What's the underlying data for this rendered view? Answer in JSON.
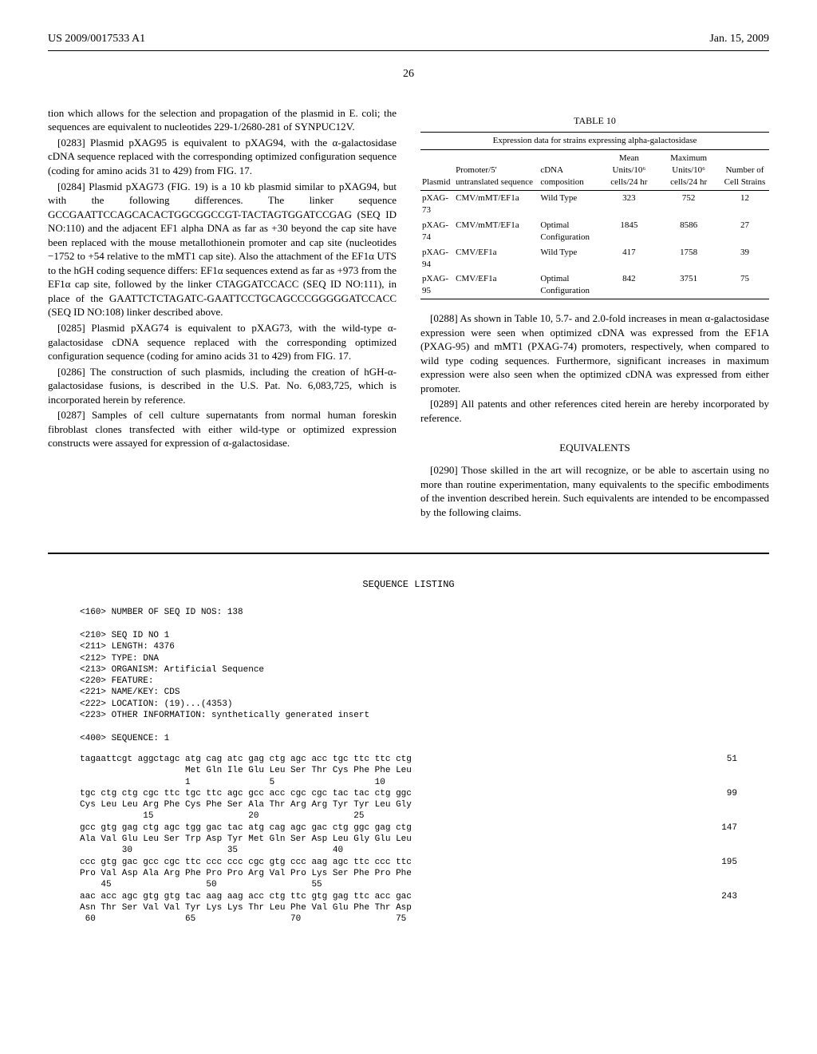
{
  "header": {
    "left": "US 2009/0017533 A1",
    "right": "Jan. 15, 2009"
  },
  "page_number": "26",
  "left_column": {
    "p282_cont": "tion which allows for the selection and propagation of the plasmid in E. coli; the sequences are equivalent to nucleotides 229-1/2680-281 of SYNPUC12V.",
    "p283": "[0283]   Plasmid pXAG95 is equivalent to pXAG94, with the α-galactosidase cDNA sequence replaced with the corresponding optimized configuration sequence (coding for amino acids 31 to 429) from FIG. 17.",
    "p284": "[0284]   Plasmid pXAG73 (FIG. 19) is a 10 kb plasmid similar to pXAG94, but with the following differences. The linker sequence GCCGAATTCCAGCACACTGGCGGCCGT-TACTAGTGGATCCGAG (SEQ ID NO:110) and the adjacent EF1 alpha DNA as far as +30 beyond the cap site have been replaced with the mouse metallothionein promoter and cap site (nucleotides −1752 to +54 relative to the mMT1 cap site). Also the attachment of the EF1α UTS to the hGH coding sequence differs: EF1α sequences extend as far as +973 from the EF1α cap site, followed by the linker CTAGGATCCACC (SEQ ID NO:111), in place of the GAATTCTCTAGATC-GAATTCCTGCAGCCCGGGGGATCCACC (SEQ ID NO:108) linker described above.",
    "p285": "[0285]   Plasmid pXAG74 is equivalent to pXAG73, with the wild-type α-galactosidase cDNA sequence replaced with the corresponding optimized configuration sequence (coding for amino acids 31 to 429) from FIG. 17.",
    "p286": "[0286]   The construction of such plasmids, including the creation of hGH-α-galactosidase fusions, is described in the U.S. Pat. No. 6,083,725, which is incorporated herein by reference.",
    "p287": "[0287]   Samples of cell culture supernatants from normal human foreskin fibroblast clones transfected with either wild-type or optimized expression constructs were assayed for expression of α-galactosidase."
  },
  "table10": {
    "title": "TABLE 10",
    "caption": "Expression data for strains expressing alpha-galactosidase",
    "headers": {
      "c1": "Plasmid",
      "c2": "Promoter/5' untranslated sequence",
      "c3": "cDNA composition",
      "c4": "Mean Units/10⁶ cells/24 hr",
      "c5": "Maximum Units/10⁶ cells/24 hr",
      "c6": "Number of Cell Strains"
    },
    "rows": [
      {
        "plasmid": "pXAG-73",
        "promoter": "CMV/mMT/EF1a",
        "cdna": "Wild Type",
        "mean": "323",
        "max": "752",
        "strains": "12"
      },
      {
        "plasmid": "pXAG-74",
        "promoter": "CMV/mMT/EF1a",
        "cdna": "Optimal Configuration",
        "mean": "1845",
        "max": "8586",
        "strains": "27"
      },
      {
        "plasmid": "pXAG-94",
        "promoter": "CMV/EF1a",
        "cdna": "Wild Type",
        "mean": "417",
        "max": "1758",
        "strains": "39"
      },
      {
        "plasmid": "pXAG-95",
        "promoter": "CMV/EF1a",
        "cdna": "Optimal Configuration",
        "mean": "842",
        "max": "3751",
        "strains": "75"
      }
    ]
  },
  "right_column": {
    "p288": "[0288]   As shown in Table 10, 5.7- and 2.0-fold increases in mean α-galactosidase expression were seen when optimized cDNA was expressed from the EF1A (PXAG-95) and mMT1 (PXAG-74) promoters, respectively, when compared to wild type coding sequences. Furthermore, significant increases in maximum expression were also seen when the optimized cDNA was expressed from either promoter.",
    "p289": "[0289]   All patents and other references cited herein are hereby incorporated by reference.",
    "equivalents_title": "EQUIVALENTS",
    "p290": "[0290]   Those skilled in the art will recognize, or be able to ascertain using no more than routine experimentation, many equivalents to the specific embodiments of the invention described herein. Such equivalents are intended to be encompassed by the following claims."
  },
  "seq_listing": {
    "title": "SEQUENCE LISTING",
    "meta": "<160> NUMBER OF SEQ ID NOS: 138\n\n<210> SEQ ID NO 1\n<211> LENGTH: 4376\n<212> TYPE: DNA\n<213> ORGANISM: Artificial Sequence\n<220> FEATURE:\n<221> NAME/KEY: CDS\n<222> LOCATION: (19)...(4353)\n<223> OTHER INFORMATION: synthetically generated insert\n\n<400> SEQUENCE: 1",
    "rows": [
      {
        "dna": "tagaattcgt aggctagc atg cag atc gag ctg agc acc tgc ttc ttc ctg",
        "pos": "51"
      },
      {
        "dna": "                    Met Gln Ile Glu Leu Ser Thr Cys Phe Phe Leu",
        "pos": ""
      },
      {
        "dna": "                    1               5                   10",
        "pos": ""
      },
      {
        "dna": "",
        "pos": ""
      },
      {
        "dna": "tgc ctg ctg cgc ttc tgc ttc agc gcc acc cgc cgc tac tac ctg ggc",
        "pos": "99"
      },
      {
        "dna": "Cys Leu Leu Arg Phe Cys Phe Ser Ala Thr Arg Arg Tyr Tyr Leu Gly",
        "pos": ""
      },
      {
        "dna": "            15                  20                  25",
        "pos": ""
      },
      {
        "dna": "",
        "pos": ""
      },
      {
        "dna": "gcc gtg gag ctg agc tgg gac tac atg cag agc gac ctg ggc gag ctg",
        "pos": "147"
      },
      {
        "dna": "Ala Val Glu Leu Ser Trp Asp Tyr Met Gln Ser Asp Leu Gly Glu Leu",
        "pos": ""
      },
      {
        "dna": "        30                  35                  40",
        "pos": ""
      },
      {
        "dna": "",
        "pos": ""
      },
      {
        "dna": "ccc gtg gac gcc cgc ttc ccc ccc cgc gtg ccc aag agc ttc ccc ttc",
        "pos": "195"
      },
      {
        "dna": "Pro Val Asp Ala Arg Phe Pro Pro Arg Val Pro Lys Ser Phe Pro Phe",
        "pos": ""
      },
      {
        "dna": "    45                  50                  55",
        "pos": ""
      },
      {
        "dna": "",
        "pos": ""
      },
      {
        "dna": "aac acc agc gtg gtg tac aag aag acc ctg ttc gtg gag ttc acc gac",
        "pos": "243"
      },
      {
        "dna": "Asn Thr Ser Val Val Tyr Lys Lys Thr Leu Phe Val Glu Phe Thr Asp",
        "pos": ""
      },
      {
        "dna": " 60                 65                  70                  75",
        "pos": ""
      }
    ]
  }
}
